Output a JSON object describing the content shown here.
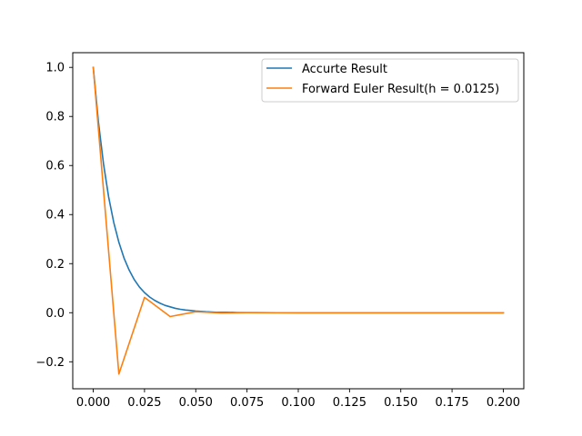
{
  "chart_data": {
    "type": "line",
    "title": "",
    "xlabel": "",
    "ylabel": "",
    "xlim": [
      -0.01,
      0.21
    ],
    "ylim": [
      -0.31,
      1.06
    ],
    "x_ticks": [
      0.0,
      0.025,
      0.05,
      0.075,
      0.1,
      0.125,
      0.15,
      0.175,
      0.2
    ],
    "x_tick_labels": [
      "0.000",
      "0.025",
      "0.050",
      "0.075",
      "0.100",
      "0.125",
      "0.150",
      "0.175",
      "0.200"
    ],
    "y_ticks": [
      -0.2,
      0.0,
      0.2,
      0.4,
      0.6,
      0.8,
      1.0
    ],
    "y_tick_labels": [
      "−0.2",
      "0.0",
      "0.2",
      "0.4",
      "0.6",
      "0.8",
      "1.0"
    ],
    "grid": false,
    "legend_position": "top-right",
    "series": [
      {
        "name": "Accurte Result",
        "color": "#1f77b4",
        "x": [
          0.0,
          0.0025,
          0.005,
          0.0075,
          0.01,
          0.0125,
          0.015,
          0.0175,
          0.02,
          0.0225,
          0.025,
          0.0275,
          0.03,
          0.0325,
          0.035,
          0.0375,
          0.04,
          0.0425,
          0.045,
          0.0475,
          0.05,
          0.055,
          0.06,
          0.065,
          0.07,
          0.075,
          0.08,
          0.09,
          0.1,
          0.11,
          0.12,
          0.13,
          0.14,
          0.15,
          0.16,
          0.17,
          0.18,
          0.19,
          0.2
        ],
        "y": [
          1.0,
          0.779,
          0.607,
          0.472,
          0.368,
          0.287,
          0.223,
          0.174,
          0.135,
          0.105,
          0.082,
          0.064,
          0.05,
          0.039,
          0.03,
          0.024,
          0.018,
          0.014,
          0.011,
          0.009,
          0.007,
          0.004,
          0.002,
          0.002,
          0.001,
          0.0006,
          0.0003,
          0.0001,
          0.0,
          0.0,
          0.0,
          0.0,
          0.0,
          0.0,
          0.0,
          0.0,
          0.0,
          0.0,
          0.0
        ]
      },
      {
        "name": "Forward Euler Result(h = 0.0125)",
        "color": "#ff7f0e",
        "x": [
          0.0,
          0.0125,
          0.025,
          0.0375,
          0.05,
          0.0625,
          0.075,
          0.0875,
          0.1,
          0.1125,
          0.125,
          0.1375,
          0.15,
          0.1625,
          0.175,
          0.1875,
          0.2
        ],
        "y": [
          1.0,
          -0.25,
          0.0625,
          -0.0156,
          0.0039,
          -0.001,
          0.0002,
          -0.0001,
          0.0,
          0.0,
          0.0,
          0.0,
          0.0,
          0.0,
          0.0,
          0.0,
          0.0
        ]
      }
    ]
  }
}
